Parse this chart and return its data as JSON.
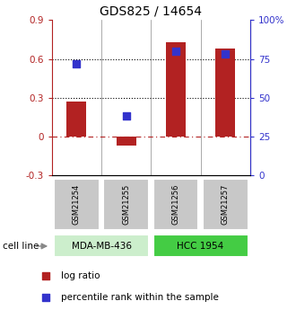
{
  "title": "GDS825 / 14654",
  "samples": [
    "GSM21254",
    "GSM21255",
    "GSM21256",
    "GSM21257"
  ],
  "log_ratios": [
    0.27,
    -0.07,
    0.73,
    0.68
  ],
  "percentile_ranks": [
    72,
    38,
    80,
    78
  ],
  "left_ylim": [
    -0.3,
    0.9
  ],
  "right_ylim": [
    0,
    100
  ],
  "left_yticks": [
    -0.3,
    0.0,
    0.3,
    0.6,
    0.9
  ],
  "left_yticklabels": [
    "-0.3",
    "0",
    "0.3",
    "0.6",
    "0.9"
  ],
  "right_yticks": [
    0,
    25,
    50,
    75,
    100
  ],
  "right_yticklabels": [
    "0",
    "25",
    "50",
    "75",
    "100%"
  ],
  "dotted_lines": [
    0.3,
    0.6
  ],
  "zero_line": 0.0,
  "bar_color": "#b22222",
  "square_color": "#3333cc",
  "cell_line_groups": [
    {
      "label": "MDA-MB-436",
      "samples": [
        0,
        1
      ],
      "color": "#cceecc"
    },
    {
      "label": "HCC 1954",
      "samples": [
        2,
        3
      ],
      "color": "#44cc44"
    }
  ],
  "sample_box_color": "#c8c8c8",
  "label_cell_line": "cell line",
  "legend_entries": [
    "log ratio",
    "percentile rank within the sample"
  ],
  "bar_width": 0.4,
  "square_size": 35,
  "title_fontsize": 10,
  "tick_fontsize": 7.5,
  "label_fontsize": 7.5
}
